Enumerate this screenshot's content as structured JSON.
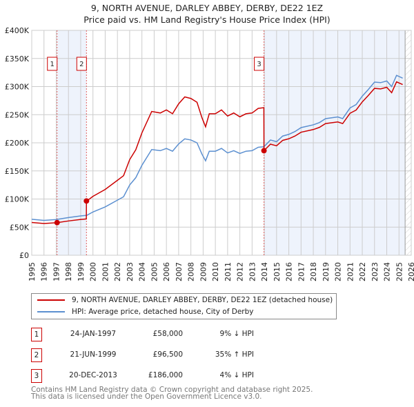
{
  "title": "9, NORTH AVENUE, DARLEY ABBEY, DERBY, DE22 1EZ",
  "subtitle": "Price paid vs. HM Land Registry's House Price Index (HPI)",
  "colors": {
    "property": "#cc0000",
    "hpi": "#5b8fd0",
    "shade": "#eef3fc"
  },
  "chart_data": {
    "type": "line",
    "xlim": [
      1995,
      2026
    ],
    "ylim": [
      0,
      400000
    ],
    "yticks": [
      "£0",
      "£50K",
      "£100K",
      "£150K",
      "£200K",
      "£250K",
      "£300K",
      "£350K",
      "£400K"
    ],
    "xticks": [
      "1995",
      "1996",
      "1997",
      "1998",
      "1999",
      "2000",
      "2001",
      "2002",
      "2003",
      "2004",
      "2005",
      "2006",
      "2007",
      "2008",
      "2009",
      "2010",
      "2011",
      "2012",
      "2013",
      "2014",
      "2015",
      "2016",
      "2017",
      "2018",
      "2019",
      "2020",
      "2021",
      "2022",
      "2023",
      "2024",
      "2025",
      "2026"
    ],
    "hpi": {
      "name": "HPI: Average price, detached house, City of Derby",
      "x": [
        1995,
        1996,
        1997,
        1998,
        1999,
        1999.5,
        2000,
        2001,
        2002,
        2002.5,
        2003,
        2003.5,
        2004,
        2004.8,
        2005.5,
        2006,
        2006.5,
        2007,
        2007.5,
        2008,
        2008.5,
        2008.9,
        2009.2,
        2009.5,
        2010,
        2010.5,
        2011,
        2011.5,
        2012,
        2012.5,
        2013,
        2013.5,
        2013.97,
        2014.5,
        2015,
        2015.5,
        2016,
        2016.5,
        2017,
        2018,
        2018.5,
        2019,
        2020,
        2020.4,
        2021,
        2021.5,
        2022,
        2022.5,
        2023,
        2023.5,
        2024,
        2024.4,
        2024.8,
        2025.3
      ],
      "y": [
        64000,
        62000,
        63500,
        67000,
        70000,
        71000,
        77000,
        86000,
        98000,
        104000,
        125000,
        138000,
        160000,
        188000,
        186000,
        190000,
        185000,
        198000,
        207000,
        205000,
        200000,
        180000,
        168000,
        185000,
        185000,
        190000,
        182000,
        186000,
        181000,
        185000,
        186000,
        192000,
        193000,
        205000,
        202000,
        212000,
        215000,
        220000,
        227000,
        232000,
        236000,
        243000,
        246000,
        243000,
        262000,
        268000,
        283000,
        295000,
        308000,
        307000,
        310000,
        300000,
        320000,
        315000
      ]
    },
    "property": {
      "name": "9, NORTH AVENUE, DARLEY ABBEY, DERBY, DE22 1EZ (detached house)"
    },
    "sales": [
      {
        "label": "1",
        "x": 1997.07,
        "y": 58000
      },
      {
        "label": "2",
        "x": 1999.47,
        "y": 96500
      },
      {
        "label": "3",
        "x": 2013.97,
        "y": 186000
      }
    ]
  },
  "legend": {
    "property": "9, NORTH AVENUE, DARLEY ABBEY, DERBY, DE22 1EZ (detached house)",
    "hpi": "HPI: Average price, detached house, City of Derby"
  },
  "table": [
    {
      "num": "1",
      "date": "24-JAN-1997",
      "price": "£58,000",
      "hpi": "9% ↓ HPI"
    },
    {
      "num": "2",
      "date": "21-JUN-1999",
      "price": "£96,500",
      "hpi": "35% ↑ HPI"
    },
    {
      "num": "3",
      "date": "20-DEC-2013",
      "price": "£186,000",
      "hpi": "4% ↓ HPI"
    }
  ],
  "footer": {
    "line1": "Contains HM Land Registry data © Crown copyright and database right 2025.",
    "line2": "This data is licensed under the Open Government Licence v3.0."
  }
}
